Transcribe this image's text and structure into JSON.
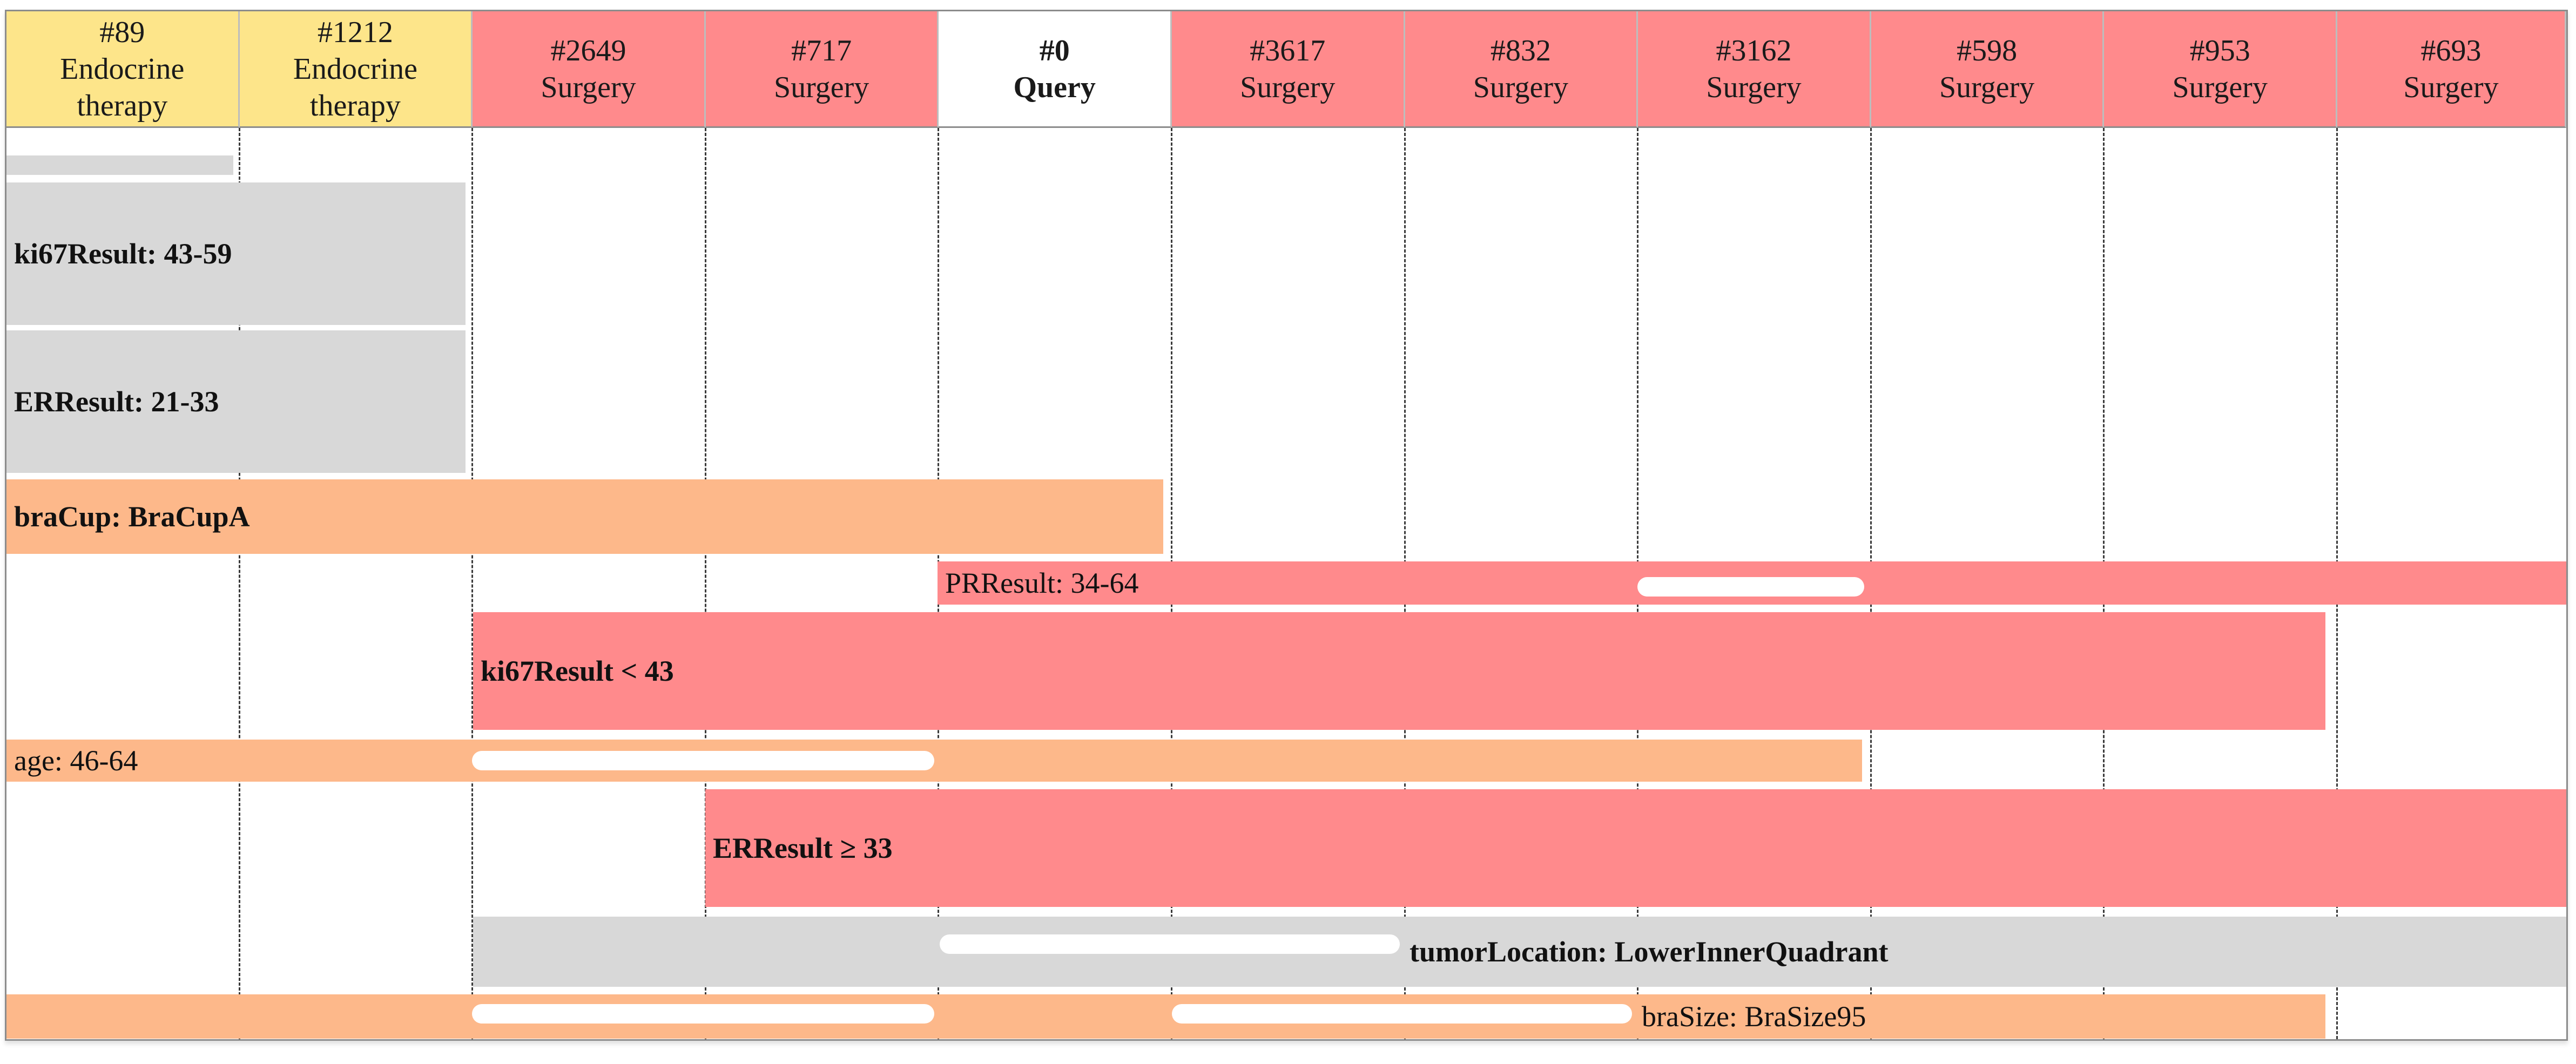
{
  "colors": {
    "endocrine": "#fde58a",
    "surgery": "#ff8a8c",
    "query": "#ffffff",
    "grey_bar": "#d8d8d8",
    "orange_bar": "#fdb88a",
    "red_bar": "#ff8a8c"
  },
  "columns": [
    {
      "id": "#89",
      "label": "Endocrine therapy",
      "category": "endocrine"
    },
    {
      "id": "#1212",
      "label": "Endocrine therapy",
      "category": "endocrine"
    },
    {
      "id": "#2649",
      "label": "Surgery",
      "category": "surgery"
    },
    {
      "id": "#717",
      "label": "Surgery",
      "category": "surgery"
    },
    {
      "id": "#0",
      "label": "Query",
      "category": "query"
    },
    {
      "id": "#3617",
      "label": "Surgery",
      "category": "surgery"
    },
    {
      "id": "#832",
      "label": "Surgery",
      "category": "surgery"
    },
    {
      "id": "#3162",
      "label": "Surgery",
      "category": "surgery"
    },
    {
      "id": "#598",
      "label": "Surgery",
      "category": "surgery"
    },
    {
      "id": "#953",
      "label": "Surgery",
      "category": "surgery"
    },
    {
      "id": "#693",
      "label": "Surgery",
      "category": "surgery"
    }
  ],
  "bars": [
    {
      "label": "",
      "color": "grey_bar",
      "bold": false
    },
    {
      "label": "ki67Result: 43-59",
      "color": "grey_bar",
      "bold": true
    },
    {
      "label": "ERResult: 21-33",
      "color": "grey_bar",
      "bold": true
    },
    {
      "label": "braCup: BraCupA",
      "color": "orange_bar",
      "bold": true
    },
    {
      "label": "PRResult: 34-64",
      "color": "red_bar",
      "bold": false
    },
    {
      "label": "ki67Result < 43",
      "color": "red_bar",
      "bold": true
    },
    {
      "label": "age: 46-64",
      "color": "orange_bar",
      "bold": false
    },
    {
      "label": "ERResult ≥ 33",
      "color": "red_bar",
      "bold": true
    },
    {
      "label": "tumorLocation: LowerInnerQuadrant",
      "color": "grey_bar",
      "bold": true
    },
    {
      "label": "braSize: BraSize95",
      "color": "orange_bar",
      "bold": false
    }
  ]
}
